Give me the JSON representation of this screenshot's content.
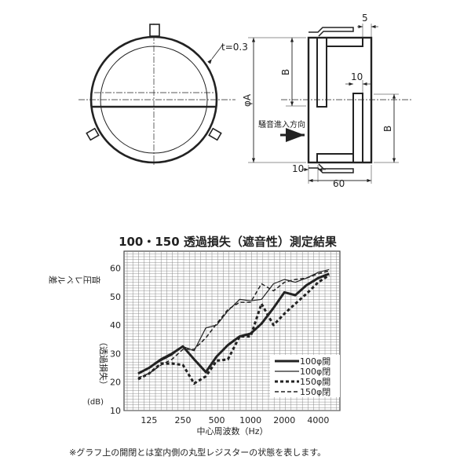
{
  "drawing": {
    "thickness_label": "t=0.3",
    "dim_5": "5",
    "dim_10_top": "10",
    "dim_10_bottom": "10",
    "dim_60": "60",
    "dim_B_upper": "B",
    "dim_B_lower": "B",
    "dim_phiA": "φA",
    "noise_direction_label": "騒音進入方向"
  },
  "chart_data": {
    "type": "line",
    "title": "100・150 透過損失（遮音性）測定結果",
    "xlabel": "中心周波数（Hz）",
    "ylabel": "音圧レベル差（透過損失）(dB)",
    "ylabel_main": "音圧レベル差",
    "ylabel_paren": "（透過損失）",
    "ylabel_unit": "(dB)",
    "x_scale": "log",
    "x": [
      100,
      125,
      160,
      200,
      250,
      315,
      400,
      500,
      630,
      800,
      1000,
      1250,
      1600,
      2000,
      2500,
      3150,
      4000,
      5000
    ],
    "x_tick_labels": [
      "125",
      "250",
      "500",
      "1000",
      "2000",
      "4000"
    ],
    "x_tick_values": [
      125,
      250,
      500,
      1000,
      2000,
      4000
    ],
    "y_tick_labels": [
      "10",
      "20",
      "30",
      "40",
      "50",
      "60"
    ],
    "ylim": [
      10,
      63
    ],
    "grid": true,
    "legend_position": "bottom-right",
    "series": [
      {
        "name": "100φ開",
        "style": "thick-solid",
        "values": [
          23,
          25,
          28,
          30,
          32.5,
          28,
          23.5,
          29,
          33,
          36,
          37,
          40.5,
          46,
          51.5,
          50.5,
          54,
          56.5,
          58
        ]
      },
      {
        "name": "100φ閉",
        "style": "thin-solid",
        "values": [
          23,
          25,
          27.5,
          29.5,
          32.5,
          31,
          39,
          40,
          45,
          49,
          48.5,
          49,
          54.5,
          56,
          55,
          56.5,
          58.5,
          59.5
        ]
      },
      {
        "name": "150φ開",
        "style": "thick-dotted",
        "values": [
          21,
          23,
          26.5,
          26.5,
          26,
          19.5,
          22,
          27.5,
          28,
          36,
          36,
          47.5,
          40,
          44,
          47.5,
          51,
          55,
          57.5
        ]
      },
      {
        "name": "150φ閉",
        "style": "thin-dashed",
        "values": [
          21.5,
          23,
          26,
          28,
          31.5,
          31.5,
          35.5,
          40.5,
          45.5,
          48,
          48,
          54.5,
          52,
          55,
          56,
          56.5,
          58,
          59
        ]
      }
    ]
  },
  "footnote": "※グラフ上の開閉とは室内側の丸型レジスターの状態を表します。"
}
